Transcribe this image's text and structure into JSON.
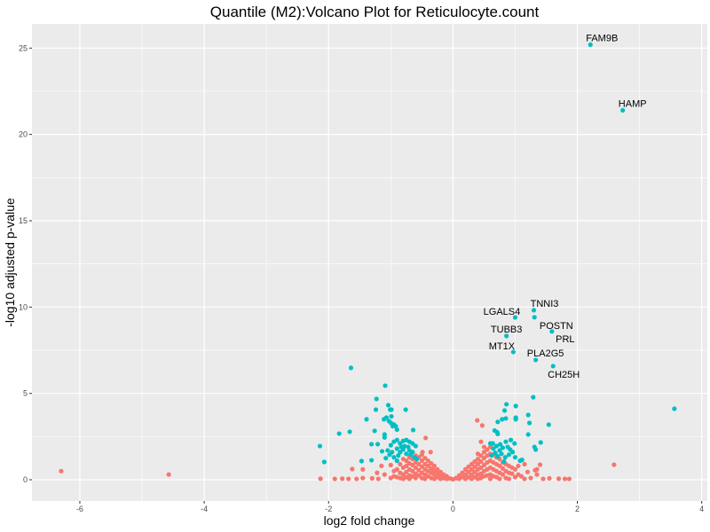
{
  "chart_data": {
    "type": "scatter",
    "title": "Quantile (M2):Volcano Plot for Reticulocyte.count",
    "xlabel": "log2 fold change",
    "ylabel": "-log10 adjusted p-value",
    "xlim": [
      -6.77,
      4.09
    ],
    "ylim": [
      -1.23,
      26.4
    ],
    "xticks": [
      -6,
      -4,
      -2,
      0,
      2,
      4
    ],
    "yticks": [
      0,
      5,
      10,
      15,
      20,
      25
    ],
    "grid": true,
    "legend": "none",
    "colors": {
      "significant": "#00BFC4",
      "not_significant": "#F8766D",
      "panel": "#EBEBEB",
      "grid": "#FFFFFF"
    },
    "labeled_points": [
      {
        "label": "FAM9B",
        "x": 2.21,
        "y": 25.2
      },
      {
        "label": "HAMP",
        "x": 2.73,
        "y": 21.4
      },
      {
        "label": "TNNI3",
        "x": 1.3,
        "y": 9.82
      },
      {
        "label": "LGALS4",
        "x": 1.0,
        "y": 9.4
      },
      {
        "label": "POSTN",
        "x": 1.59,
        "y": 8.59
      },
      {
        "label": "PRL",
        "x": 1.59,
        "y": 8.59
      },
      {
        "label": "TUBB3",
        "x": 0.86,
        "y": 8.33
      },
      {
        "label": "MT1X",
        "x": 0.97,
        "y": 7.4
      },
      {
        "label": "PLA2G5",
        "x": 1.33,
        "y": 6.94
      },
      {
        "label": "CH25H",
        "x": 1.61,
        "y": 6.58
      }
    ],
    "significant": [
      [
        1.31,
        9.41
      ],
      [
        3.56,
        4.11
      ],
      [
        -1.64,
        6.48
      ],
      [
        -1.09,
        5.45
      ],
      [
        -1.23,
        4.68
      ],
      [
        -1.04,
        4.32
      ],
      [
        -1.24,
        4.06
      ],
      [
        -1.01,
        4.06
      ],
      [
        -0.99,
        4.06
      ],
      [
        -0.76,
        4.06
      ],
      [
        -1.39,
        3.5
      ],
      [
        -1.11,
        3.5
      ],
      [
        -1.07,
        3.6
      ],
      [
        -0.99,
        3.67
      ],
      [
        -1.0,
        3.3
      ],
      [
        -0.97,
        3.1
      ],
      [
        -0.92,
        3.1
      ],
      [
        -0.9,
        2.9
      ],
      [
        -0.95,
        3.2
      ],
      [
        -1.03,
        3.4
      ],
      [
        -1.83,
        2.67
      ],
      [
        -1.66,
        2.78
      ],
      [
        -1.26,
        2.83
      ],
      [
        -1.1,
        2.62
      ],
      [
        -1.1,
        2.45
      ],
      [
        -0.64,
        2.88
      ],
      [
        -2.14,
        1.95
      ],
      [
        -2.07,
        1.03
      ],
      [
        -1.47,
        1.08
      ],
      [
        -1.31,
        1.13
      ],
      [
        -1.31,
        2.06
      ],
      [
        -1.21,
        2.06
      ],
      [
        -1.14,
        1.65
      ],
      [
        -1.05,
        1.7
      ],
      [
        -1.0,
        2.0
      ],
      [
        -0.95,
        2.2
      ],
      [
        -0.9,
        2.3
      ],
      [
        -0.85,
        2.1
      ],
      [
        -0.8,
        2.25
      ],
      [
        -0.75,
        2.3
      ],
      [
        -0.7,
        2.2
      ],
      [
        -0.65,
        2.1
      ],
      [
        -0.6,
        1.95
      ],
      [
        -0.9,
        1.8
      ],
      [
        -0.85,
        1.6
      ],
      [
        -0.8,
        1.75
      ],
      [
        -0.75,
        1.5
      ],
      [
        -0.7,
        1.7
      ],
      [
        -0.65,
        1.6
      ],
      [
        -1.02,
        1.45
      ],
      [
        -0.95,
        1.3
      ],
      [
        -0.9,
        1.1
      ],
      [
        -0.88,
        1.4
      ],
      [
        -0.78,
        1.95
      ],
      [
        -0.72,
        1.9
      ],
      [
        -0.68,
        1.45
      ],
      [
        -0.62,
        1.3
      ],
      [
        -1.08,
        1.25
      ],
      [
        -0.98,
        1.6
      ],
      [
        -0.83,
        1.9
      ],
      [
        -0.58,
        1.2
      ],
      [
        1.29,
        4.78
      ],
      [
        0.86,
        4.37
      ],
      [
        1.01,
        4.27
      ],
      [
        0.83,
        4.01
      ],
      [
        1.21,
        3.75
      ],
      [
        1.01,
        3.6
      ],
      [
        1.01,
        3.5
      ],
      [
        0.79,
        3.5
      ],
      [
        0.85,
        3.55
      ],
      [
        0.72,
        3.35
      ],
      [
        1.23,
        3.29
      ],
      [
        1.54,
        3.19
      ],
      [
        0.67,
        2.85
      ],
      [
        0.71,
        2.75
      ],
      [
        0.72,
        2.65
      ],
      [
        1.21,
        2.62
      ],
      [
        1.41,
        2.16
      ],
      [
        1.31,
        1.9
      ],
      [
        1.33,
        1.75
      ],
      [
        0.6,
        2.1
      ],
      [
        0.64,
        2.1
      ],
      [
        0.85,
        2.2
      ],
      [
        0.99,
        2.1
      ],
      [
        0.93,
        2.3
      ],
      [
        1.08,
        1.1
      ],
      [
        1.11,
        1.15
      ],
      [
        0.65,
        1.8
      ],
      [
        0.7,
        1.95
      ],
      [
        0.75,
        1.7
      ],
      [
        0.8,
        1.85
      ],
      [
        0.88,
        1.9
      ],
      [
        0.92,
        1.75
      ],
      [
        0.68,
        1.55
      ],
      [
        0.72,
        1.35
      ],
      [
        0.78,
        1.5
      ],
      [
        0.84,
        1.3
      ],
      [
        0.9,
        1.45
      ],
      [
        0.96,
        1.6
      ],
      [
        0.62,
        1.4
      ],
      [
        0.82,
        1.05
      ],
      [
        1.0,
        1.3
      ],
      [
        0.76,
        2.05
      ]
    ],
    "not_significant": [
      [
        -6.3,
        0.5
      ],
      [
        -4.57,
        0.3
      ],
      [
        2.59,
        0.87
      ],
      [
        -2.13,
        0.06
      ],
      [
        -1.62,
        0.62
      ],
      [
        -1.45,
        0.6
      ],
      [
        -1.78,
        0.06
      ],
      [
        -1.68,
        0.05
      ],
      [
        -1.9,
        0.05
      ],
      [
        -1.3,
        0.08
      ],
      [
        -1.2,
        0.05
      ],
      [
        -1.45,
        0.1
      ],
      [
        -1.55,
        0.05
      ],
      [
        1.4,
        0.87
      ],
      [
        1.35,
        0.6
      ],
      [
        1.32,
        0.55
      ],
      [
        1.7,
        0.06
      ],
      [
        1.8,
        0.05
      ],
      [
        1.87,
        0.05
      ],
      [
        1.55,
        0.08
      ],
      [
        1.25,
        0.1
      ],
      [
        1.35,
        0.3
      ],
      [
        1.45,
        0.05
      ],
      [
        0.39,
        3.44
      ],
      [
        0.47,
        3.14
      ],
      [
        -0.44,
        2.42
      ],
      [
        -0.49,
        1.6
      ],
      [
        -0.36,
        1.6
      ],
      [
        -1.15,
        0.8
      ],
      [
        -1.0,
        0.85
      ],
      [
        -1.22,
        0.4
      ],
      [
        -1.1,
        0.3
      ],
      [
        -0.95,
        0.5
      ],
      [
        1.15,
        0.9
      ],
      [
        1.05,
        0.8
      ],
      [
        1.2,
        0.45
      ],
      [
        0.95,
        0.7
      ],
      [
        1.1,
        0.2
      ],
      [
        -1.0,
        0.1
      ],
      [
        -0.95,
        0.2
      ],
      [
        -0.9,
        0.6
      ],
      [
        -0.9,
        0.15
      ],
      [
        -0.85,
        0.9
      ],
      [
        -0.85,
        0.4
      ],
      [
        -0.85,
        0.1
      ],
      [
        -0.8,
        1.2
      ],
      [
        -0.8,
        0.7
      ],
      [
        -0.8,
        0.3
      ],
      [
        -0.8,
        0.05
      ],
      [
        -0.75,
        1.1
      ],
      [
        -0.75,
        0.8
      ],
      [
        -0.75,
        0.45
      ],
      [
        -0.75,
        0.15
      ],
      [
        -0.7,
        1.3
      ],
      [
        -0.7,
        0.95
      ],
      [
        -0.7,
        0.6
      ],
      [
        -0.7,
        0.25
      ],
      [
        -0.7,
        0.05
      ],
      [
        -0.65,
        1.2
      ],
      [
        -0.65,
        0.85
      ],
      [
        -0.65,
        0.5
      ],
      [
        -0.65,
        0.2
      ],
      [
        -0.6,
        1.4
      ],
      [
        -0.6,
        1.0
      ],
      [
        -0.6,
        0.7
      ],
      [
        -0.6,
        0.35
      ],
      [
        -0.6,
        0.1
      ],
      [
        -0.55,
        1.3
      ],
      [
        -0.55,
        0.9
      ],
      [
        -0.55,
        0.55
      ],
      [
        -0.55,
        0.25
      ],
      [
        -0.5,
        1.45
      ],
      [
        -0.5,
        1.1
      ],
      [
        -0.5,
        0.75
      ],
      [
        -0.5,
        0.4
      ],
      [
        -0.5,
        0.1
      ],
      [
        -0.45,
        1.25
      ],
      [
        -0.45,
        0.9
      ],
      [
        -0.45,
        0.6
      ],
      [
        -0.45,
        0.3
      ],
      [
        -0.45,
        0.05
      ],
      [
        -0.4,
        1.1
      ],
      [
        -0.4,
        0.8
      ],
      [
        -0.4,
        0.5
      ],
      [
        -0.4,
        0.2
      ],
      [
        -0.35,
        0.95
      ],
      [
        -0.35,
        0.65
      ],
      [
        -0.35,
        0.4
      ],
      [
        -0.35,
        0.1
      ],
      [
        -0.3,
        0.8
      ],
      [
        -0.3,
        0.55
      ],
      [
        -0.3,
        0.3
      ],
      [
        -0.3,
        0.05
      ],
      [
        -0.25,
        0.6
      ],
      [
        -0.25,
        0.4
      ],
      [
        -0.25,
        0.15
      ],
      [
        -0.2,
        0.45
      ],
      [
        -0.2,
        0.25
      ],
      [
        -0.2,
        0.05
      ],
      [
        -0.15,
        0.3
      ],
      [
        -0.15,
        0.1
      ],
      [
        -0.1,
        0.2
      ],
      [
        -0.1,
        0.05
      ],
      [
        -0.05,
        0.08
      ],
      [
        0.0,
        0.02
      ],
      [
        0.05,
        0.1
      ],
      [
        0.1,
        0.25
      ],
      [
        0.1,
        0.05
      ],
      [
        0.15,
        0.4
      ],
      [
        0.15,
        0.15
      ],
      [
        0.2,
        0.6
      ],
      [
        0.2,
        0.3
      ],
      [
        0.2,
        0.05
      ],
      [
        0.25,
        0.75
      ],
      [
        0.25,
        0.45
      ],
      [
        0.25,
        0.15
      ],
      [
        0.3,
        0.9
      ],
      [
        0.3,
        0.6
      ],
      [
        0.3,
        0.3
      ],
      [
        0.3,
        0.05
      ],
      [
        0.35,
        1.05
      ],
      [
        0.35,
        0.75
      ],
      [
        0.35,
        0.45
      ],
      [
        0.35,
        0.15
      ],
      [
        0.4,
        1.2
      ],
      [
        0.4,
        0.9
      ],
      [
        0.4,
        0.6
      ],
      [
        0.4,
        0.3
      ],
      [
        0.4,
        0.05
      ],
      [
        0.45,
        1.4
      ],
      [
        0.45,
        1.05
      ],
      [
        0.45,
        0.7
      ],
      [
        0.45,
        0.35
      ],
      [
        0.45,
        0.1
      ],
      [
        0.5,
        1.6
      ],
      [
        0.5,
        1.25
      ],
      [
        0.5,
        0.85
      ],
      [
        0.5,
        0.5
      ],
      [
        0.5,
        0.2
      ],
      [
        0.55,
        1.75
      ],
      [
        0.55,
        1.4
      ],
      [
        0.55,
        1.0
      ],
      [
        0.55,
        0.6
      ],
      [
        0.55,
        0.25
      ],
      [
        0.6,
        1.9
      ],
      [
        0.6,
        1.5
      ],
      [
        0.6,
        1.1
      ],
      [
        0.6,
        0.7
      ],
      [
        0.6,
        0.3
      ],
      [
        0.6,
        0.05
      ],
      [
        0.65,
        1.45
      ],
      [
        0.65,
        1.0
      ],
      [
        0.65,
        0.6
      ],
      [
        0.65,
        0.2
      ],
      [
        0.7,
        1.3
      ],
      [
        0.7,
        0.9
      ],
      [
        0.7,
        0.5
      ],
      [
        0.7,
        0.15
      ],
      [
        0.75,
        1.2
      ],
      [
        0.75,
        0.8
      ],
      [
        0.75,
        0.4
      ],
      [
        0.75,
        0.05
      ],
      [
        0.8,
        1.0
      ],
      [
        0.8,
        0.65
      ],
      [
        0.8,
        0.3
      ],
      [
        0.85,
        0.9
      ],
      [
        0.85,
        0.5
      ],
      [
        0.85,
        0.1
      ],
      [
        0.9,
        0.8
      ],
      [
        0.9,
        0.4
      ],
      [
        0.9,
        0.05
      ],
      [
        0.95,
        0.35
      ],
      [
        1.0,
        0.6
      ],
      [
        1.0,
        0.15
      ],
      [
        1.05,
        0.3
      ],
      [
        1.15,
        0.05
      ],
      [
        0.45,
        2.2
      ],
      [
        0.5,
        1.9
      ],
      [
        0.4,
        1.5
      ]
    ]
  }
}
